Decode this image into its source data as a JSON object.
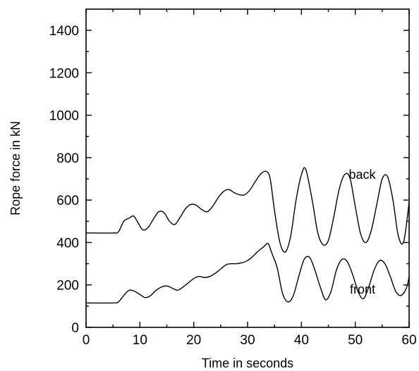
{
  "chart_data": {
    "type": "line",
    "title": "",
    "xlabel": "Time in seconds",
    "ylabel": "Rope force in kN",
    "xlim": [
      0,
      60
    ],
    "ylim": [
      0,
      1500
    ],
    "xticks": [
      0,
      10,
      20,
      30,
      40,
      50,
      60
    ],
    "yticks": [
      0,
      200,
      400,
      600,
      800,
      1000,
      1200,
      1400
    ],
    "grid": false,
    "annotations": [
      {
        "text": "back",
        "x": 48.8,
        "y": 700
      },
      {
        "text": "front",
        "x": 49.0,
        "y": 160
      }
    ],
    "series": [
      {
        "name": "back",
        "x": [
          0,
          5,
          6,
          7,
          8,
          8.8,
          9.5,
          10.5,
          11.5,
          12.5,
          13.5,
          14.5,
          15.5,
          16.5,
          17.5,
          18.5,
          19.5,
          20.5,
          21.5,
          22.5,
          23.5,
          24.5,
          25.5,
          26.5,
          27.5,
          28.5,
          29.5,
          30.5,
          31.5,
          32.5,
          33.5,
          34.2,
          35,
          36,
          37,
          38,
          39,
          40,
          40.8,
          42,
          43,
          44,
          45,
          46,
          47,
          48,
          49,
          50,
          51,
          52,
          53,
          54,
          55,
          56,
          57,
          58,
          59,
          60
        ],
        "y": [
          445,
          445,
          450,
          500,
          515,
          525,
          500,
          460,
          470,
          510,
          545,
          540,
          500,
          485,
          520,
          560,
          580,
          575,
          555,
          545,
          570,
          610,
          640,
          650,
          635,
          625,
          625,
          650,
          690,
          725,
          735,
          700,
          550,
          400,
          355,
          430,
          600,
          720,
          745,
          600,
          450,
          390,
          410,
          520,
          650,
          720,
          705,
          570,
          440,
          400,
          460,
          580,
          700,
          710,
          600,
          430,
          405,
          590
        ]
      },
      {
        "name": "front",
        "x": [
          0,
          5,
          6,
          7,
          8,
          9,
          10,
          11,
          12,
          13,
          14,
          15,
          16,
          17,
          18,
          19,
          20,
          21,
          22,
          23,
          24,
          25,
          26,
          27,
          28,
          29,
          30,
          31,
          32,
          33,
          33.8,
          34.5,
          35.5,
          36.5,
          37.5,
          38.5,
          39.5,
          40.5,
          41.5,
          42.5,
          43.5,
          44.5,
          45.5,
          46.5,
          47.5,
          48.5,
          49.5,
          50.5,
          51.5,
          52.5,
          53.5,
          54.5,
          55.5,
          56.5,
          57.5,
          58.5,
          59.5,
          60
        ],
        "y": [
          115,
          115,
          120,
          150,
          175,
          170,
          155,
          140,
          150,
          175,
          190,
          195,
          185,
          175,
          190,
          210,
          230,
          240,
          235,
          240,
          255,
          275,
          295,
          300,
          300,
          305,
          315,
          335,
          360,
          380,
          395,
          350,
          280,
          160,
          120,
          150,
          240,
          320,
          330,
          270,
          190,
          130,
          170,
          270,
          320,
          310,
          250,
          170,
          135,
          190,
          270,
          315,
          300,
          240,
          170,
          150,
          185,
          240
        ]
      }
    ]
  }
}
